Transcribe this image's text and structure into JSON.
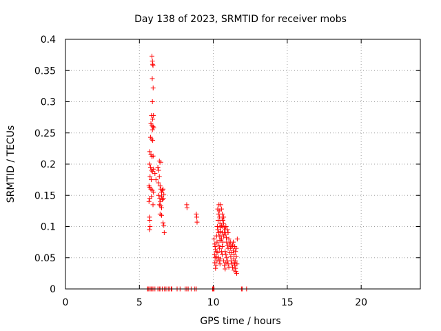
{
  "chart_data": {
    "type": "scatter",
    "title": "Day 138 of 2023, SRMTID for receiver mobs",
    "xlabel": "GPS time / hours",
    "ylabel": "SRMTID / TECUs",
    "xlim": [
      0,
      24
    ],
    "ylim": [
      0,
      0.4
    ],
    "xticks": [
      0,
      5,
      10,
      15,
      20
    ],
    "yticks": [
      0,
      0.05,
      0.1,
      0.15,
      0.2,
      0.25,
      0.3,
      0.35,
      0.4
    ],
    "xtick_labels": [
      "0",
      "5",
      "10",
      "15",
      "20"
    ],
    "ytick_labels": [
      "0",
      "0.05",
      "0.1",
      "0.15",
      "0.2",
      "0.25",
      "0.3",
      "0.35",
      "0.4"
    ],
    "grid": true,
    "marker": "+",
    "series": [
      {
        "name": "SRMTID",
        "color": "#ff0000",
        "points": [
          [
            5.85,
            0.373
          ],
          [
            5.88,
            0.365
          ],
          [
            5.9,
            0.36
          ],
          [
            5.92,
            0.358
          ],
          [
            5.87,
            0.337
          ],
          [
            5.93,
            0.322
          ],
          [
            5.88,
            0.3
          ],
          [
            5.82,
            0.278
          ],
          [
            5.95,
            0.278
          ],
          [
            5.9,
            0.272
          ],
          [
            5.78,
            0.265
          ],
          [
            5.85,
            0.262
          ],
          [
            5.92,
            0.26
          ],
          [
            5.97,
            0.258
          ],
          [
            5.88,
            0.255
          ],
          [
            5.75,
            0.243
          ],
          [
            5.82,
            0.24
          ],
          [
            5.9,
            0.238
          ],
          [
            5.7,
            0.22
          ],
          [
            5.78,
            0.215
          ],
          [
            5.85,
            0.212
          ],
          [
            5.93,
            0.213
          ],
          [
            5.68,
            0.2
          ],
          [
            5.76,
            0.195
          ],
          [
            5.82,
            0.19
          ],
          [
            5.88,
            0.188
          ],
          [
            5.95,
            0.192
          ],
          [
            5.72,
            0.18
          ],
          [
            5.8,
            0.175
          ],
          [
            5.65,
            0.165
          ],
          [
            5.7,
            0.163
          ],
          [
            5.78,
            0.16
          ],
          [
            5.87,
            0.158
          ],
          [
            5.95,
            0.155
          ],
          [
            5.82,
            0.148
          ],
          [
            5.7,
            0.145
          ],
          [
            5.65,
            0.14
          ],
          [
            5.92,
            0.135
          ],
          [
            5.68,
            0.115
          ],
          [
            5.7,
            0.11
          ],
          [
            5.72,
            0.1
          ],
          [
            5.68,
            0.095
          ],
          [
            6.05,
            0.185
          ],
          [
            6.12,
            0.175
          ],
          [
            6.25,
            0.195
          ],
          [
            6.3,
            0.19
          ],
          [
            6.35,
            0.18
          ],
          [
            6.28,
            0.17
          ],
          [
            6.35,
            0.205
          ],
          [
            6.45,
            0.203
          ],
          [
            6.4,
            0.165
          ],
          [
            6.45,
            0.16
          ],
          [
            6.5,
            0.155
          ],
          [
            6.55,
            0.158
          ],
          [
            6.3,
            0.15
          ],
          [
            6.38,
            0.145
          ],
          [
            6.42,
            0.14
          ],
          [
            6.5,
            0.148
          ],
          [
            6.55,
            0.143
          ],
          [
            6.35,
            0.135
          ],
          [
            6.45,
            0.133
          ],
          [
            6.5,
            0.13
          ],
          [
            6.6,
            0.16
          ],
          [
            6.65,
            0.152
          ],
          [
            6.62,
            0.145
          ],
          [
            6.4,
            0.12
          ],
          [
            6.5,
            0.118
          ],
          [
            6.6,
            0.106
          ],
          [
            6.65,
            0.102
          ],
          [
            6.68,
            0.09
          ],
          [
            8.2,
            0.135
          ],
          [
            8.22,
            0.13
          ],
          [
            8.85,
            0.12
          ],
          [
            8.88,
            0.115
          ],
          [
            8.9,
            0.107
          ],
          [
            10.05,
            0.08
          ],
          [
            10.1,
            0.072
          ],
          [
            10.12,
            0.068
          ],
          [
            10.15,
            0.063
          ],
          [
            10.08,
            0.055
          ],
          [
            10.12,
            0.05
          ],
          [
            10.1,
            0.042
          ],
          [
            10.18,
            0.038
          ],
          [
            10.15,
            0.033
          ],
          [
            10.2,
            0.06
          ],
          [
            10.25,
            0.075
          ],
          [
            10.22,
            0.085
          ],
          [
            10.3,
            0.095
          ],
          [
            10.28,
            0.1
          ],
          [
            10.32,
            0.11
          ],
          [
            10.35,
            0.12
          ],
          [
            10.3,
            0.128
          ],
          [
            10.38,
            0.135
          ],
          [
            10.4,
            0.125
          ],
          [
            10.42,
            0.115
          ],
          [
            10.45,
            0.105
          ],
          [
            10.48,
            0.098
          ],
          [
            10.5,
            0.092
          ],
          [
            10.52,
            0.085
          ],
          [
            10.55,
            0.08
          ],
          [
            10.5,
            0.135
          ],
          [
            10.55,
            0.128
          ],
          [
            10.6,
            0.12
          ],
          [
            10.62,
            0.112
          ],
          [
            10.65,
            0.1
          ],
          [
            10.35,
            0.09
          ],
          [
            10.4,
            0.085
          ],
          [
            10.45,
            0.078
          ],
          [
            10.38,
            0.07
          ],
          [
            10.42,
            0.065
          ],
          [
            10.3,
            0.058
          ],
          [
            10.35,
            0.05
          ],
          [
            10.4,
            0.045
          ],
          [
            10.45,
            0.04
          ],
          [
            10.5,
            0.048
          ],
          [
            10.55,
            0.06
          ],
          [
            10.6,
            0.068
          ],
          [
            10.65,
            0.075
          ],
          [
            10.7,
            0.085
          ],
          [
            10.75,
            0.09
          ],
          [
            10.8,
            0.095
          ],
          [
            10.85,
            0.1
          ],
          [
            10.7,
            0.105
          ],
          [
            10.75,
            0.098
          ],
          [
            10.82,
            0.088
          ],
          [
            10.88,
            0.082
          ],
          [
            10.9,
            0.075
          ],
          [
            10.95,
            0.07
          ],
          [
            11.0,
            0.065
          ],
          [
            10.8,
            0.06
          ],
          [
            10.85,
            0.055
          ],
          [
            10.9,
            0.05
          ],
          [
            10.95,
            0.045
          ],
          [
            11.0,
            0.04
          ],
          [
            11.05,
            0.035
          ],
          [
            10.7,
            0.045
          ],
          [
            10.75,
            0.038
          ],
          [
            10.8,
            0.032
          ],
          [
            10.85,
            0.042
          ],
          [
            11.05,
            0.08
          ],
          [
            11.1,
            0.072
          ],
          [
            11.15,
            0.065
          ],
          [
            11.12,
            0.058
          ],
          [
            11.18,
            0.052
          ],
          [
            11.2,
            0.045
          ],
          [
            11.25,
            0.04
          ],
          [
            11.3,
            0.035
          ],
          [
            11.35,
            0.062
          ],
          [
            11.4,
            0.055
          ],
          [
            11.38,
            0.048
          ],
          [
            11.42,
            0.042
          ],
          [
            11.45,
            0.038
          ],
          [
            11.5,
            0.033
          ],
          [
            11.3,
            0.07
          ],
          [
            11.35,
            0.075
          ],
          [
            11.45,
            0.068
          ],
          [
            11.5,
            0.06
          ],
          [
            11.55,
            0.052
          ],
          [
            11.48,
            0.045
          ],
          [
            11.52,
            0.028
          ],
          [
            11.58,
            0.025
          ],
          [
            11.6,
            0.04
          ],
          [
            11.62,
            0.08
          ],
          [
            11.55,
            0.065
          ],
          [
            11.4,
            0.03
          ],
          [
            11.25,
            0.058
          ],
          [
            11.2,
            0.068
          ],
          [
            11.15,
            0.075
          ],
          [
            11.0,
            0.09
          ],
          [
            10.95,
            0.095
          ],
          [
            10.6,
            0.055
          ],
          [
            10.25,
            0.045
          ],
          [
            10.2,
            0.052
          ],
          [
            10.65,
            0.11
          ],
          [
            10.7,
            0.115
          ],
          [
            10.55,
            0.102
          ],
          [
            10.6,
            0.09
          ],
          [
            5.55,
            0
          ],
          [
            5.6,
            0
          ],
          [
            5.7,
            0
          ],
          [
            5.78,
            0
          ],
          [
            5.85,
            0
          ],
          [
            5.92,
            0
          ],
          [
            6.05,
            0
          ],
          [
            6.25,
            0
          ],
          [
            6.35,
            0
          ],
          [
            6.45,
            0
          ],
          [
            6.55,
            0
          ],
          [
            6.7,
            0
          ],
          [
            6.8,
            0
          ],
          [
            6.95,
            0
          ],
          [
            7.05,
            0
          ],
          [
            7.15,
            0
          ],
          [
            7.2,
            0
          ],
          [
            7.55,
            0
          ],
          [
            7.75,
            0
          ],
          [
            8.1,
            0
          ],
          [
            8.2,
            0
          ],
          [
            8.3,
            0
          ],
          [
            8.5,
            0
          ],
          [
            8.75,
            0
          ],
          [
            8.85,
            0
          ],
          [
            9.95,
            0
          ],
          [
            10.0,
            0
          ],
          [
            10.05,
            0
          ],
          [
            11.9,
            0
          ],
          [
            11.95,
            0
          ],
          [
            12.25,
            0
          ]
        ]
      }
    ]
  }
}
